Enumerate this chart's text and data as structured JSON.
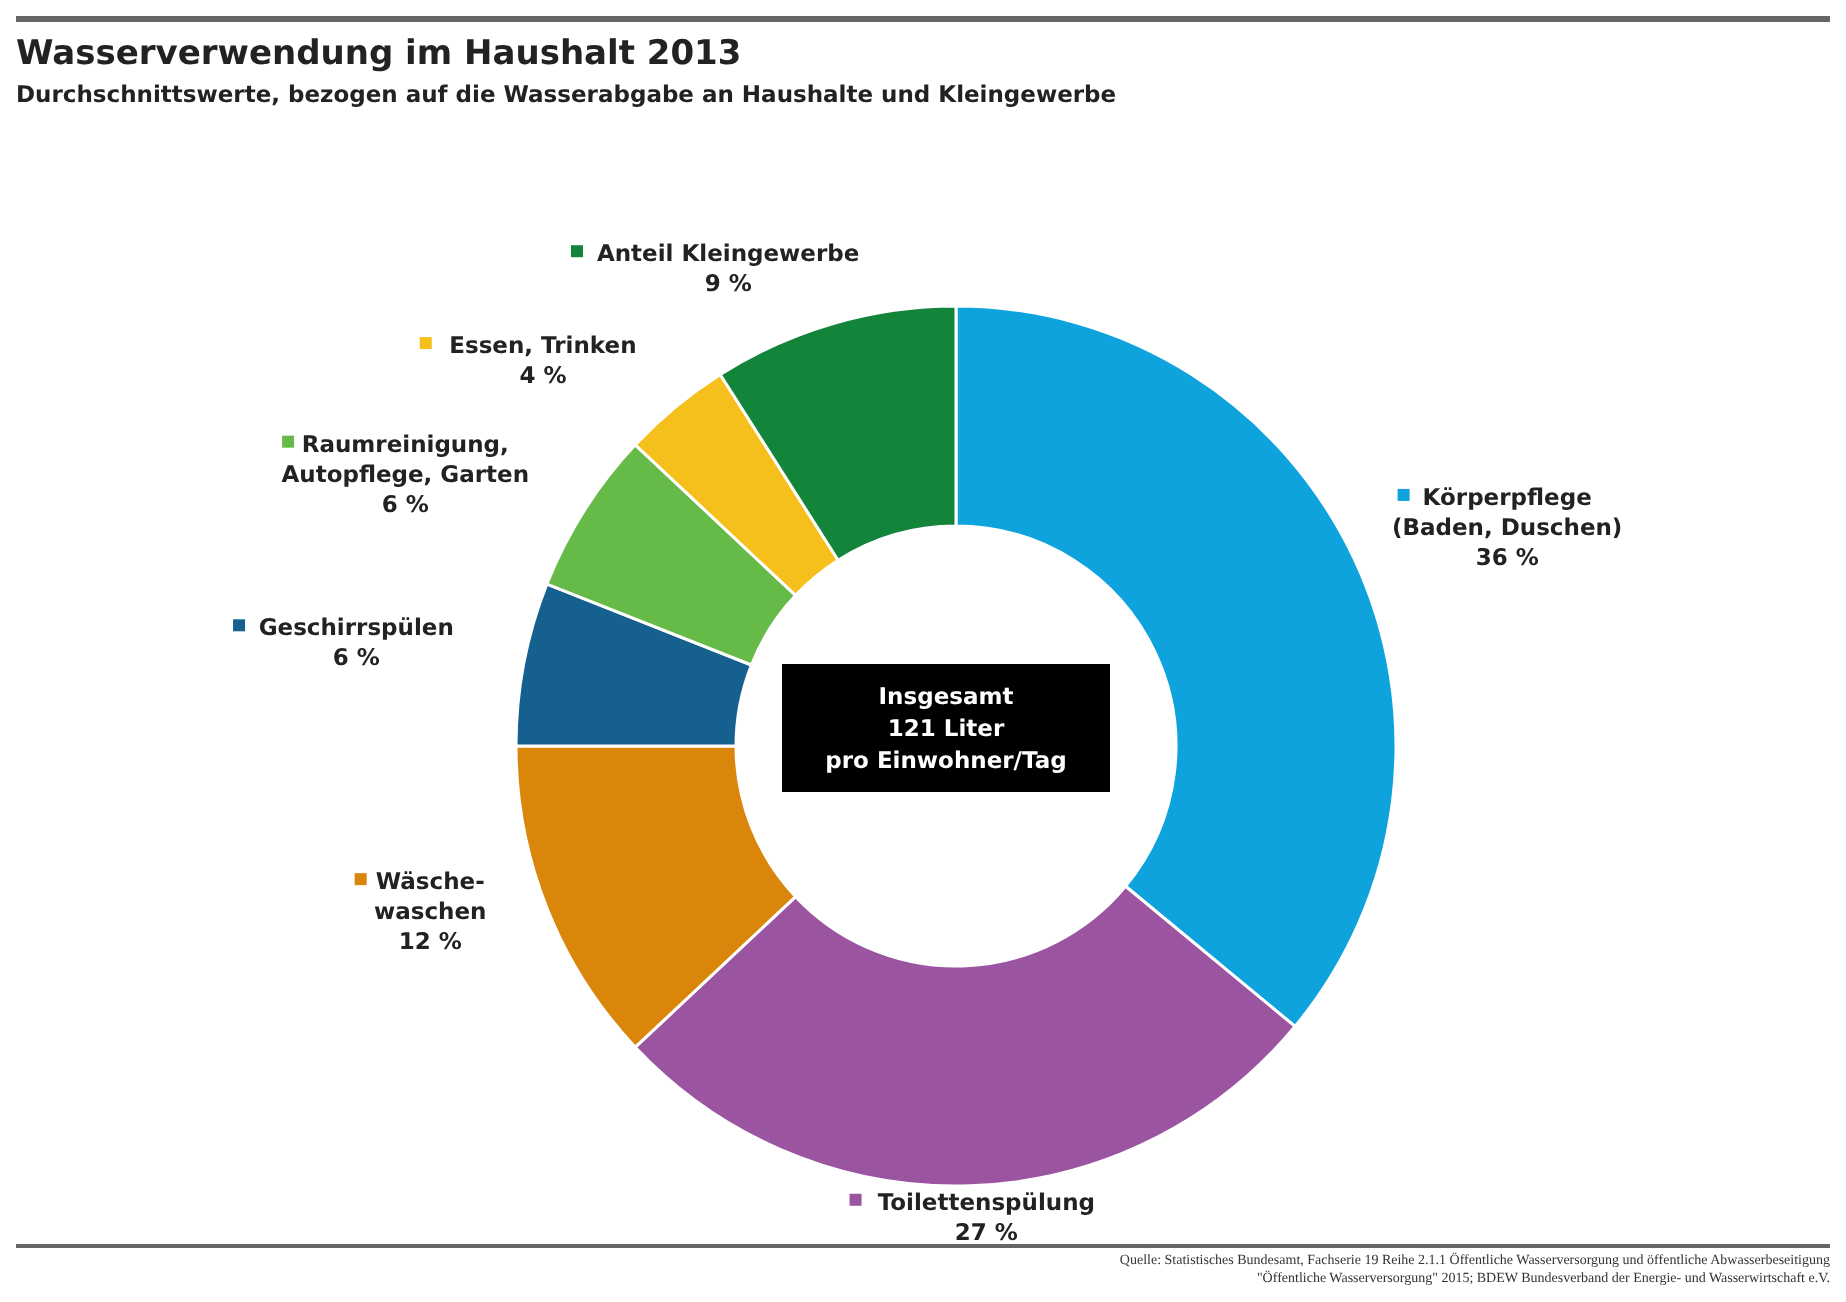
{
  "chart_data": {
    "type": "donut",
    "title": "Wasserverwendung im Haushalt 2013",
    "subtitle": "Durchschnittswerte, bezogen auf die Wasserabgabe an Haushalte und Kleingewerbe",
    "categories": [
      "Körperpflege\n(Baden, Duschen)",
      "Toilettenspülung",
      "Wäsche-\nwaschen",
      "Geschirrspülen",
      "Raumreinigung,\nAutopflege, Garten",
      "Essen, Trinken",
      "Anteil Kleingewerbe"
    ],
    "values": [
      36,
      27,
      12,
      6,
      6,
      4,
      9
    ],
    "colors": [
      "#0fa3dd",
      "#9b55a0",
      "#d9860a",
      "#15608e",
      "#66bb48",
      "#f6c01c",
      "#13853a"
    ],
    "value_labels": [
      "36 %",
      "27 %",
      "12 %",
      "6 %",
      "6 %",
      "4 %",
      "9 %"
    ],
    "legend": "right",
    "annotations": [
      "Insgesamt\n121 Liter\npro Einwohner/Tag",
      "Quelle: Statistisches Bundesamt, Fachserie 19 Reihe 2.1.1 Öffentliche Wasserversorgung und öffentliche Abwasserbeseitigung\n\"Öffentliche Wasserversorgung\" 2015; BDEW Bundesverband der Energie- und Wasserwirtschaft e.V."
    ]
  }
}
